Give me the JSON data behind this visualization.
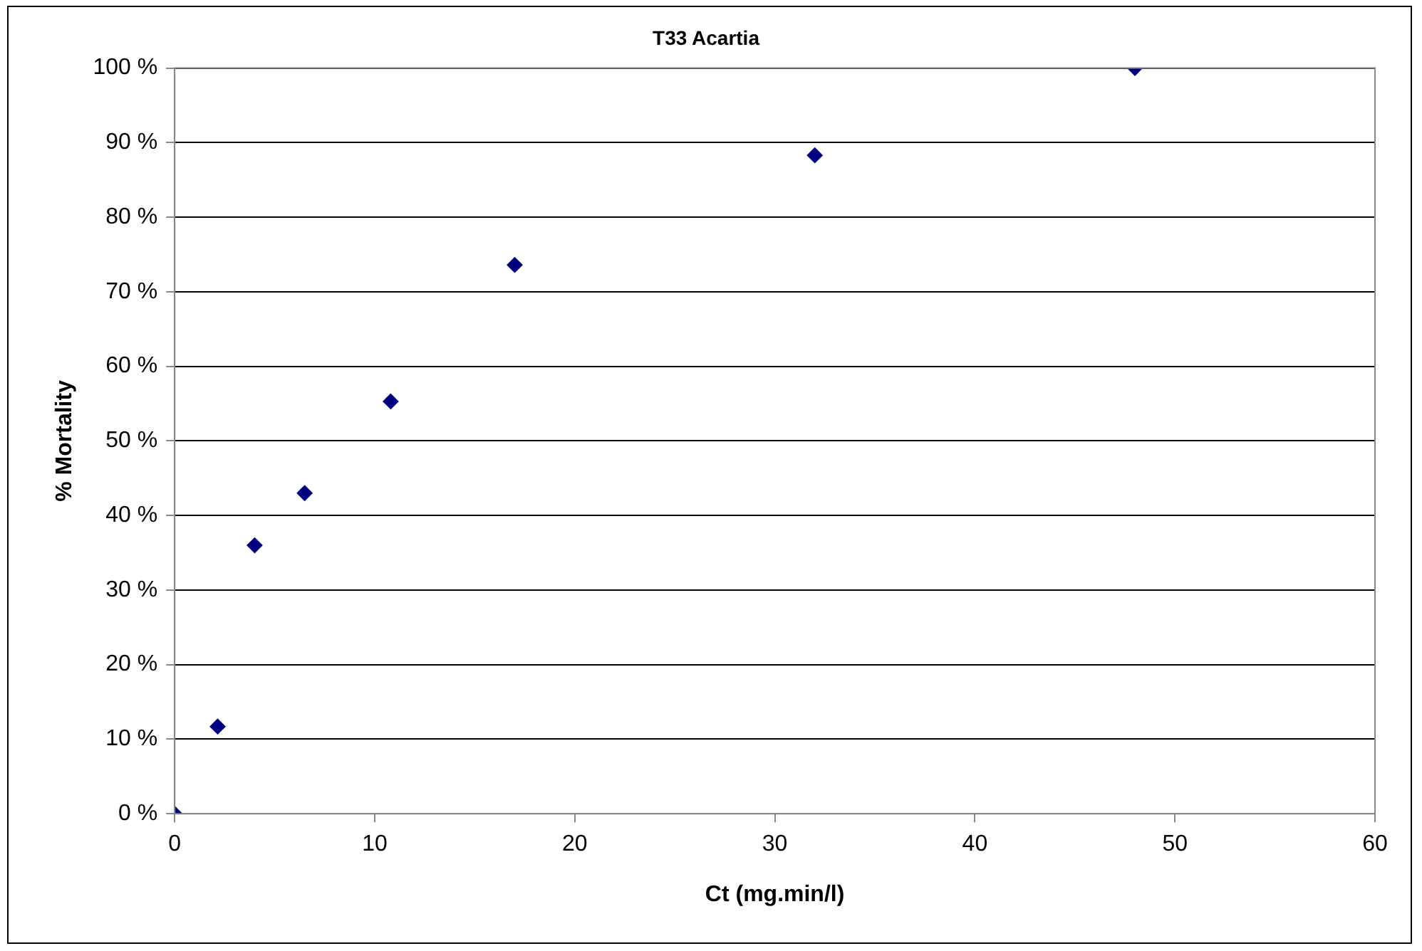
{
  "chart_data": {
    "type": "scatter",
    "title": "T33 Acartia",
    "xlabel": "Ct (mg.min/l)",
    "ylabel": "% Mortality",
    "x": [
      0,
      2.15,
      4.0,
      6.5,
      10.8,
      17.0,
      32.0,
      48.0
    ],
    "series": [
      {
        "color": "#000080",
        "values": [
          0,
          11.7,
          36.0,
          43.0,
          55.3,
          73.6,
          88.3,
          100
        ]
      }
    ],
    "xlim": [
      0,
      60
    ],
    "xticks": [
      0,
      10,
      20,
      30,
      40,
      50,
      60
    ],
    "ylim": [
      0,
      100
    ],
    "yticks": [
      {
        "value": 0,
        "label": "0 %"
      },
      {
        "value": 10,
        "label": "10 %"
      },
      {
        "value": 20,
        "label": "20 %"
      },
      {
        "value": 30,
        "label": "30 %"
      },
      {
        "value": 40,
        "label": "40 %"
      },
      {
        "value": 50,
        "label": "50 %"
      },
      {
        "value": 60,
        "label": "60 %"
      },
      {
        "value": 70,
        "label": "70 %"
      },
      {
        "value": 80,
        "label": "80 %"
      },
      {
        "value": 90,
        "label": "90 %"
      },
      {
        "value": 100,
        "label": "100 %"
      }
    ],
    "grid": "y",
    "legend": false,
    "marker": "diamond"
  }
}
